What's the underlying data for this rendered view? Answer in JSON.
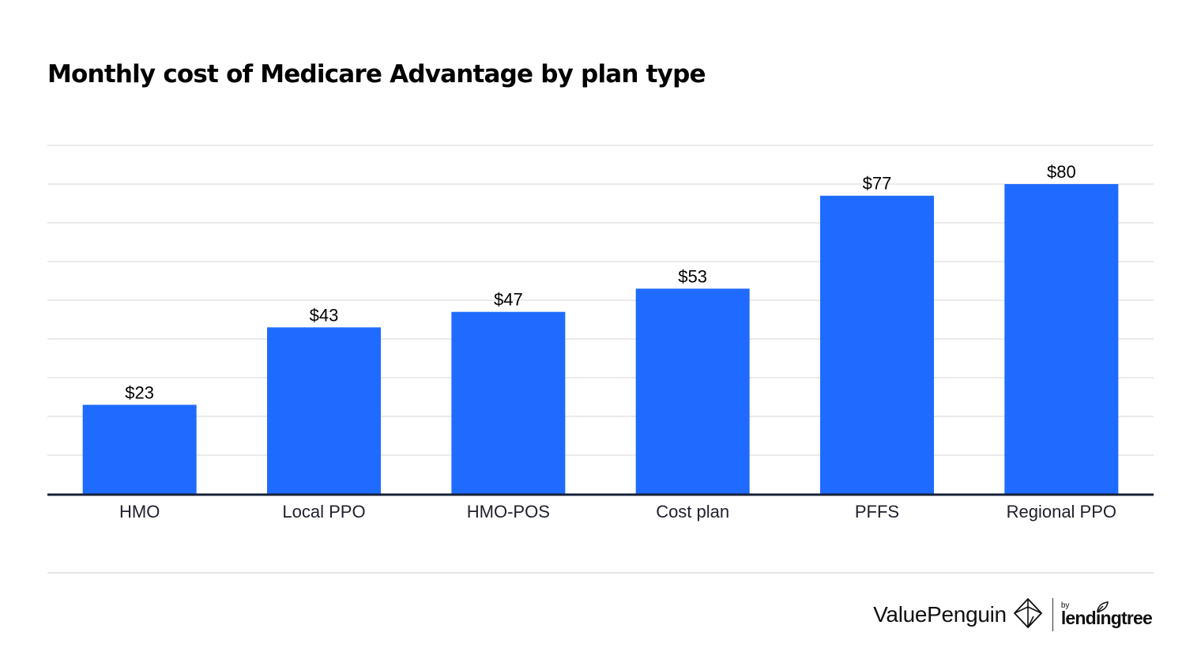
{
  "chart_data": {
    "type": "bar",
    "title": "Monthly cost of Medicare Advantage by plan type",
    "categories": [
      "HMO",
      "Local PPO",
      "HMO-POS",
      "Cost plan",
      "PFFS",
      "Regional PPO"
    ],
    "values": [
      23,
      43,
      47,
      53,
      77,
      80
    ],
    "value_labels": [
      "$23",
      "$43",
      "$47",
      "$53",
      "$77",
      "$80"
    ],
    "xlabel": "",
    "ylabel": "",
    "ylim": [
      0,
      90
    ],
    "grid": true,
    "gridline_values": [
      10,
      20,
      30,
      40,
      50,
      60,
      70,
      80,
      90
    ],
    "bar_color": "#1f6bff",
    "axis_color": "#16213a",
    "grid_color": "#e3e3e3"
  },
  "branding": {
    "name": "ValuePenguin",
    "partner_prefix": "by",
    "partner_name": "lendingtree",
    "brand_icon": "penguin-diamond-icon",
    "partner_icon": "leaf-icon"
  }
}
